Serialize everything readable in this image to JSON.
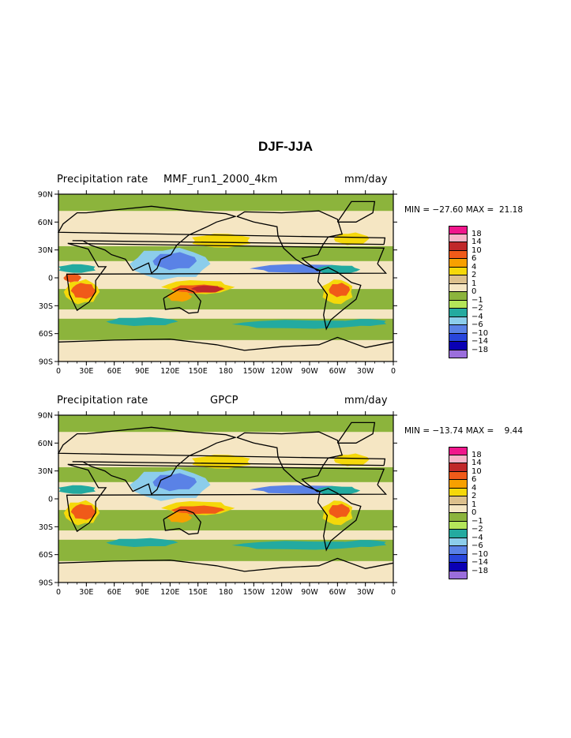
{
  "title": "DJF-JJA",
  "levels": [
    "18",
    "14",
    "10",
    "6",
    "4",
    "2",
    "1",
    "0",
    "−1",
    "−2",
    "−4",
    "−6",
    "−10",
    "−14",
    "−18"
  ],
  "colors": [
    "#f0168c",
    "#f7b3c8",
    "#c0282a",
    "#f05a19",
    "#f7a000",
    "#f5d80a",
    "#dcc08c",
    "#f5e6c3",
    "#8cb43c",
    "#b4e65a",
    "#23aaa0",
    "#8ccdeb",
    "#5a82e6",
    "#2846dc",
    "#0a00b4",
    "#9b6edc"
  ],
  "x_ticks": [
    "0",
    "30E",
    "60E",
    "90E",
    "120E",
    "150E",
    "180",
    "150W",
    "120W",
    "90W",
    "60W",
    "30W",
    "0"
  ],
  "y_ticks": [
    "90N",
    "60N",
    "30N",
    "0",
    "30S",
    "60S",
    "90S"
  ],
  "panels": [
    {
      "left": "Precipitation rate",
      "center": "MMF_run1_2000_4km",
      "right": "mm/day",
      "min_label": "MIN =",
      "min_value": "−27.60",
      "max_label": "MAX =",
      "max_value": "21.18"
    },
    {
      "left": "Precipitation rate",
      "center": "GPCP",
      "right": "mm/day",
      "min_label": "MIN =",
      "min_value": "−13.74",
      "max_label": "MAX =",
      "max_value": "9.44"
    }
  ],
  "chart_data": [
    {
      "type": "heatmap",
      "title": "DJF-JJA",
      "subtitle": "MMF_run1_2000_4km",
      "units": "mm/day",
      "x_axis": "longitude",
      "xlim": [
        0,
        360
      ],
      "y_axis": "latitude",
      "ylim": [
        -90,
        90
      ],
      "min": -27.6,
      "max": 21.18,
      "levels": [
        -18,
        -14,
        -10,
        -6,
        -4,
        -2,
        -1,
        0,
        1,
        2,
        4,
        6,
        10,
        14,
        18
      ]
    },
    {
      "type": "heatmap",
      "title": "DJF-JJA",
      "subtitle": "GPCP",
      "units": "mm/day",
      "x_axis": "longitude",
      "xlim": [
        0,
        360
      ],
      "y_axis": "latitude",
      "ylim": [
        -90,
        90
      ],
      "min": -13.74,
      "max": 9.44,
      "levels": [
        -18,
        -14,
        -10,
        -6,
        -4,
        -2,
        -1,
        0,
        1,
        2,
        4,
        6,
        10,
        14,
        18
      ]
    }
  ]
}
